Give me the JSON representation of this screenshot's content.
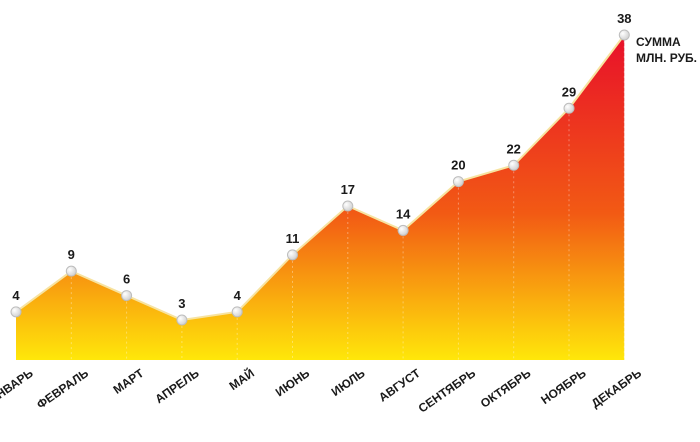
{
  "chart_data": {
    "type": "area",
    "categories": [
      "ЯНВАРЬ",
      "ФЕВРАЛЬ",
      "МАРТ",
      "АПРЕЛЬ",
      "МАЙ",
      "ИЮНЬ",
      "ИЮЛЬ",
      "АВГУСТ",
      "СЕНТЯБРЬ",
      "ОКТЯБРЬ",
      "НОЯБРЬ",
      "ДЕКАБРЬ"
    ],
    "series": [
      {
        "name": "СУММА МЛН. РУБ.",
        "values": [
          4,
          9,
          6,
          3,
          4,
          11,
          17,
          14,
          20,
          22,
          29,
          38
        ]
      }
    ],
    "legend": {
      "line1": "СУММА",
      "line2": "МЛН. РУБ.",
      "placement": "top-right"
    },
    "ylim": [
      0,
      38
    ],
    "grid": false,
    "colors": {
      "top": "#e8102a",
      "middle": "#f25a14",
      "bottom": "#ffe70a",
      "line": "#f7e3a0",
      "text": "#1a1a1a"
    }
  }
}
